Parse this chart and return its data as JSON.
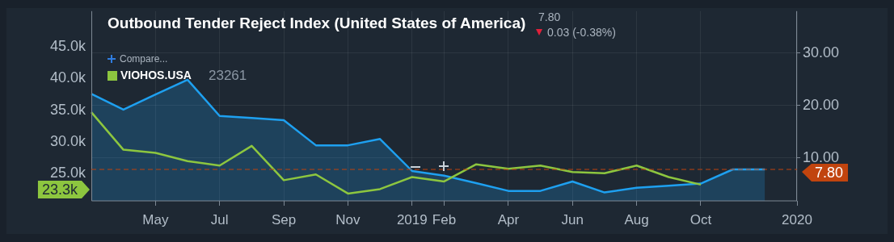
{
  "chart_data": {
    "type": "line",
    "title": "Outbound Tender Reject Index (United States of America)",
    "categories": [
      null,
      null,
      "May",
      null,
      "Jul",
      null,
      "Sep",
      null,
      "Nov",
      null,
      "2019",
      "Feb",
      null,
      "Apr",
      null,
      "Jun",
      null,
      "Aug",
      null,
      "Oct",
      null,
      null,
      "2020"
    ],
    "series": [
      {
        "type": "area",
        "axis": "y2",
        "color": "#1ea0f0",
        "values": [
          22.2,
          19.2,
          22.1,
          24.9,
          18.0,
          17.6,
          17.2,
          12.4,
          12.4,
          13.6,
          7.5,
          6.6,
          5.2,
          3.7,
          3.7,
          5.5,
          3.4,
          4.3,
          4.7,
          5.1,
          7.8,
          7.8,
          null
        ]
      },
      {
        "name": "VIOHOS.USA",
        "type": "line",
        "axis": "y",
        "color": "#8dc63f",
        "values": [
          34.7,
          28.8,
          28.3,
          27.0,
          26.3,
          29.4,
          24.0,
          24.9,
          21.9,
          22.6,
          24.5,
          23.8,
          26.5,
          25.8,
          26.3,
          25.3,
          25.1,
          26.3,
          24.5,
          23.3,
          null,
          null,
          null
        ]
      }
    ],
    "ylim": [
      20.75,
      50.6
    ],
    "yticks": [
      {
        "value": 25,
        "label": "25.0k"
      },
      {
        "value": 30,
        "label": "30.0k"
      },
      {
        "value": 35,
        "label": "35.0k"
      },
      {
        "value": 40,
        "label": "40.0k"
      },
      {
        "value": 45,
        "label": "45.0k"
      }
    ],
    "y2lim": [
      1.8,
      38
    ],
    "y2ticks": [
      {
        "value": 10,
        "label": "10.00"
      },
      {
        "value": 20,
        "label": "20.00"
      },
      {
        "value": 30,
        "label": "30.00"
      }
    ],
    "ref_lines": [
      {
        "axis": "y2",
        "value": 7.8,
        "label": "7.80",
        "color": "#c1440e",
        "line_style": "dashed"
      }
    ],
    "annotations": [
      "7.80",
      "0.03 (-0.38%)",
      "Compare...",
      "23261",
      "23.3k"
    ],
    "grid": true,
    "legend": "top left",
    "marker": "none",
    "line_style": "solid"
  }
}
